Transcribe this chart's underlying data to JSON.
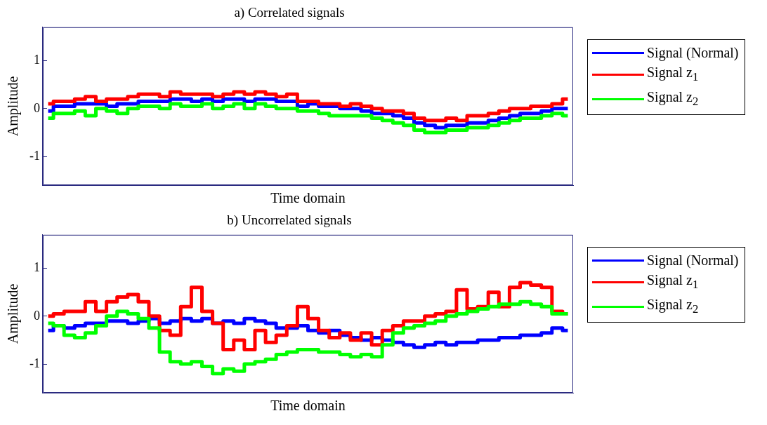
{
  "chart_data": [
    {
      "type": "step",
      "title": "a) Correlated signals",
      "xlabel": "Time domain",
      "ylabel": "Amplitude",
      "categories": [
        null,
        null,
        null,
        null,
        null,
        null,
        null,
        null,
        null,
        null,
        null,
        null,
        null,
        null,
        null,
        null,
        null,
        null,
        null,
        null,
        null,
        null,
        null,
        null,
        null,
        null,
        null,
        null,
        null,
        null,
        null,
        null,
        null,
        null,
        null,
        null,
        null,
        null,
        null,
        null,
        null,
        null,
        null,
        null,
        null,
        null,
        null,
        null,
        null,
        null
      ],
      "ylim": [
        -1.6,
        1.7
      ],
      "yticks": [
        -1,
        0,
        1
      ],
      "tick_labels": "y",
      "grid": false,
      "legend": "right",
      "series": [
        {
          "name": "Signal (Normal)",
          "color": "#0000ff",
          "values": [
            -0.05,
            0.05,
            0.05,
            0.1,
            0.1,
            0.1,
            0.05,
            0.1,
            0.1,
            0.15,
            0.15,
            0.15,
            0.2,
            0.2,
            0.15,
            0.2,
            0.15,
            0.2,
            0.2,
            0.15,
            0.2,
            0.2,
            0.15,
            0.15,
            0.05,
            0.1,
            0.05,
            0.05,
            0,
            0,
            -0.05,
            -0.1,
            -0.1,
            -0.15,
            -0.2,
            -0.3,
            -0.35,
            -0.4,
            -0.35,
            -0.35,
            -0.3,
            -0.3,
            -0.25,
            -0.2,
            -0.15,
            -0.1,
            -0.1,
            -0.05,
            0,
            0
          ]
        },
        {
          "name": "Signal z$_{1}$",
          "color": "#ff0000",
          "values": [
            0.1,
            0.15,
            0.15,
            0.2,
            0.25,
            0.15,
            0.2,
            0.2,
            0.25,
            0.3,
            0.3,
            0.25,
            0.35,
            0.3,
            0.3,
            0.3,
            0.25,
            0.3,
            0.35,
            0.3,
            0.35,
            0.3,
            0.25,
            0.3,
            0.15,
            0.15,
            0.1,
            0.1,
            0.05,
            0.1,
            0.05,
            0,
            -0.05,
            -0.05,
            -0.1,
            -0.2,
            -0.25,
            -0.25,
            -0.2,
            -0.25,
            -0.15,
            -0.15,
            -0.1,
            -0.05,
            0,
            0,
            0.05,
            0.05,
            0.1,
            0.2
          ]
        },
        {
          "name": "Signal z$_{2}$",
          "color": "#00ff00",
          "values": [
            -0.2,
            -0.1,
            -0.1,
            -0.05,
            -0.15,
            0,
            -0.05,
            -0.1,
            0,
            0.05,
            0.05,
            0,
            0.1,
            0.05,
            0.05,
            0.1,
            0,
            0.05,
            0.1,
            0,
            0.1,
            0.05,
            0,
            0,
            -0.05,
            -0.05,
            -0.1,
            -0.15,
            -0.15,
            -0.15,
            -0.15,
            -0.2,
            -0.25,
            -0.3,
            -0.35,
            -0.45,
            -0.5,
            -0.5,
            -0.45,
            -0.45,
            -0.4,
            -0.4,
            -0.35,
            -0.3,
            -0.25,
            -0.2,
            -0.2,
            -0.15,
            -0.1,
            -0.15
          ]
        }
      ]
    },
    {
      "type": "step",
      "title": "b) Uncorrelated signals",
      "xlabel": "Time domain",
      "ylabel": "Amplitude",
      "categories": [
        null,
        null,
        null,
        null,
        null,
        null,
        null,
        null,
        null,
        null,
        null,
        null,
        null,
        null,
        null,
        null,
        null,
        null,
        null,
        null,
        null,
        null,
        null,
        null,
        null,
        null,
        null,
        null,
        null,
        null,
        null,
        null,
        null,
        null,
        null,
        null,
        null,
        null,
        null,
        null,
        null,
        null,
        null,
        null,
        null,
        null,
        null,
        null,
        null,
        null
      ],
      "ylim": [
        -1.6,
        1.7
      ],
      "yticks": [
        -1,
        0,
        1
      ],
      "tick_labels": "y",
      "grid": false,
      "legend": "right",
      "series": [
        {
          "name": "Signal (Normal)",
          "color": "#0000ff",
          "values": [
            -0.3,
            -0.2,
            -0.25,
            -0.2,
            -0.15,
            -0.15,
            -0.1,
            -0.1,
            -0.15,
            -0.1,
            -0.05,
            -0.15,
            -0.1,
            -0.05,
            -0.1,
            -0.05,
            -0.15,
            -0.1,
            -0.15,
            -0.05,
            -0.1,
            -0.15,
            -0.25,
            -0.25,
            -0.2,
            -0.3,
            -0.35,
            -0.3,
            -0.4,
            -0.45,
            -0.5,
            -0.45,
            -0.5,
            -0.55,
            -0.6,
            -0.65,
            -0.6,
            -0.55,
            -0.6,
            -0.55,
            -0.55,
            -0.5,
            -0.5,
            -0.45,
            -0.45,
            -0.4,
            -0.4,
            -0.35,
            -0.25,
            -0.3
          ]
        },
        {
          "name": "Signal z$_{1}$",
          "color": "#ff0000",
          "values": [
            0,
            0.05,
            0.1,
            0.1,
            0.3,
            0.1,
            0.3,
            0.4,
            0.45,
            0.3,
            0,
            -0.3,
            -0.4,
            0.2,
            0.6,
            0.1,
            -0.15,
            -0.7,
            -0.5,
            -0.7,
            -0.3,
            -0.55,
            -0.4,
            -0.2,
            0.2,
            -0.05,
            -0.3,
            -0.45,
            -0.35,
            -0.5,
            -0.35,
            -0.6,
            -0.3,
            -0.2,
            -0.1,
            -0.1,
            0,
            0.05,
            0.1,
            0.55,
            0.15,
            0.2,
            0.5,
            0.2,
            0.6,
            0.7,
            0.65,
            0.6,
            0.1,
            0.05
          ]
        },
        {
          "name": "Signal z$_{2}$",
          "color": "#00ff00",
          "values": [
            -0.15,
            -0.2,
            -0.4,
            -0.45,
            -0.35,
            -0.2,
            0,
            0.1,
            0.05,
            -0.05,
            -0.25,
            -0.75,
            -0.95,
            -1,
            -0.95,
            -1.05,
            -1.2,
            -1.1,
            -1.15,
            -1,
            -0.95,
            -0.9,
            -0.8,
            -0.75,
            -0.7,
            -0.7,
            -0.75,
            -0.75,
            -0.8,
            -0.85,
            -0.8,
            -0.85,
            -0.6,
            -0.35,
            -0.25,
            -0.2,
            -0.15,
            -0.1,
            0,
            0.05,
            0.1,
            0.15,
            0.2,
            0.25,
            0.25,
            0.3,
            0.25,
            0.2,
            0.05,
            0.05
          ]
        }
      ]
    }
  ]
}
